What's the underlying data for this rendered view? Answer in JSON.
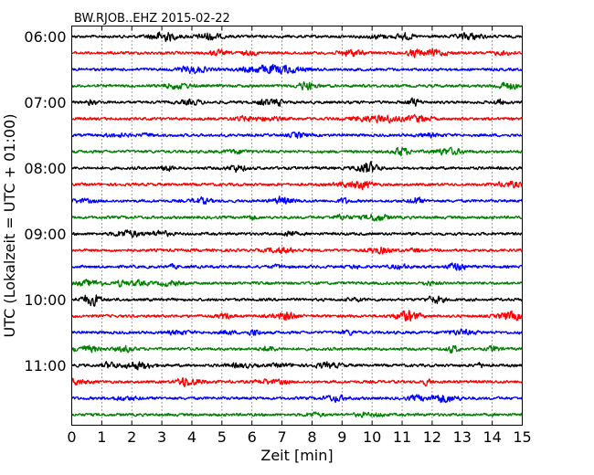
{
  "chart_data": {
    "type": "line",
    "title": "BW.RJOB..EHZ 2015-02-22",
    "xlabel": "Zeit  [min]",
    "ylabel": "UTC (Lokalzeit = UTC + 01:00)",
    "xlim": [
      0,
      15
    ],
    "x_ticks": [
      "0",
      "1",
      "2",
      "3",
      "4",
      "5",
      "6",
      "7",
      "8",
      "9",
      "10",
      "11",
      "12",
      "13",
      "14",
      "15"
    ],
    "y_tick_labels": [
      "06:00",
      "07:00",
      "08:00",
      "09:00",
      "10:00",
      "11:00"
    ],
    "y_ticks_at_trace_index": [
      0,
      4,
      8,
      12,
      16,
      20
    ],
    "trace_count": 24,
    "trace_interval_min": 15,
    "start_time": "06:00",
    "grid": {
      "x": true,
      "y": false,
      "style": "dotted"
    },
    "series_color_cycle": [
      "#000000",
      "#ff0000",
      "#0000ff",
      "#008000"
    ],
    "series": [
      {
        "start": "06:00",
        "color": "#000000"
      },
      {
        "start": "06:15",
        "color": "#ff0000"
      },
      {
        "start": "06:30",
        "color": "#0000ff"
      },
      {
        "start": "06:45",
        "color": "#008000"
      },
      {
        "start": "07:00",
        "color": "#000000"
      },
      {
        "start": "07:15",
        "color": "#ff0000"
      },
      {
        "start": "07:30",
        "color": "#0000ff"
      },
      {
        "start": "07:45",
        "color": "#008000"
      },
      {
        "start": "08:00",
        "color": "#000000"
      },
      {
        "start": "08:15",
        "color": "#ff0000"
      },
      {
        "start": "08:30",
        "color": "#0000ff"
      },
      {
        "start": "08:45",
        "color": "#008000"
      },
      {
        "start": "09:00",
        "color": "#000000"
      },
      {
        "start": "09:15",
        "color": "#ff0000"
      },
      {
        "start": "09:30",
        "color": "#0000ff"
      },
      {
        "start": "09:45",
        "color": "#008000"
      },
      {
        "start": "10:00",
        "color": "#000000"
      },
      {
        "start": "10:15",
        "color": "#ff0000"
      },
      {
        "start": "10:30",
        "color": "#0000ff"
      },
      {
        "start": "10:45",
        "color": "#008000"
      },
      {
        "start": "11:00",
        "color": "#000000"
      },
      {
        "start": "11:15",
        "color": "#ff0000"
      },
      {
        "start": "11:30",
        "color": "#0000ff"
      },
      {
        "start": "11:45",
        "color": "#008000"
      }
    ]
  }
}
